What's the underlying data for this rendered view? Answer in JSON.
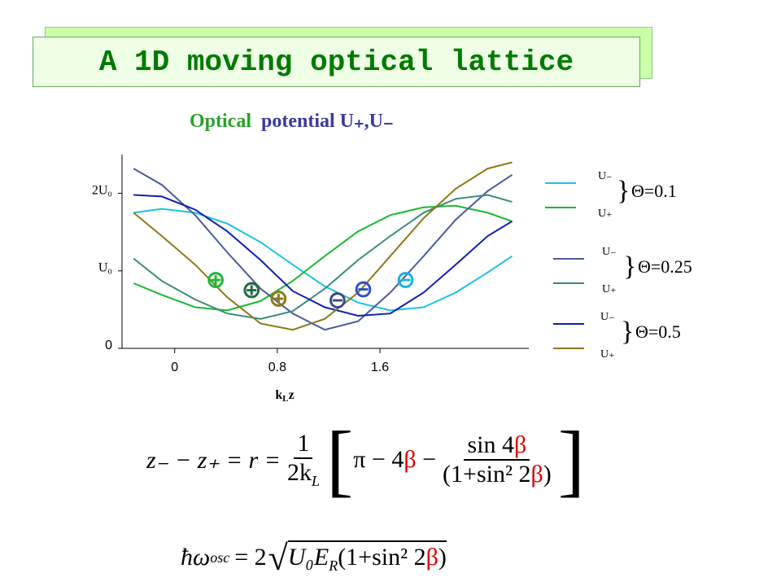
{
  "title": "A 1D moving optical lattice",
  "subtitle_parts": [
    "Optical",
    "potential U₊,U₋"
  ],
  "chart_data": {
    "type": "line",
    "x": [
      -0.32,
      -0.1,
      0.16,
      0.41,
      0.67,
      0.92,
      1.17,
      1.43,
      1.68,
      1.94,
      2.19,
      2.44,
      2.63
    ],
    "xlim": [
      -0.41,
      2.76
    ],
    "xticks": [
      0,
      0.8,
      1.6
    ],
    "ylim": [
      0,
      2.5
    ],
    "yticks": [
      0,
      {
        "value": 1,
        "label": "U₀"
      },
      {
        "value": 2,
        "label": "2U₀"
      }
    ],
    "x_label_parts": [
      "k",
      "L",
      "z"
    ],
    "legend_groups": [
      "Θ=0.1",
      "Θ=0.25",
      "Θ=0.5"
    ],
    "series": [
      {
        "name": "U₋",
        "color": "#19c3e6",
        "values": [
          1.75,
          1.8,
          1.75,
          1.61,
          1.37,
          1.08,
          0.8,
          0.59,
          0.49,
          0.53,
          0.72,
          0.98,
          1.19
        ]
      },
      {
        "name": "U₊",
        "color": "#19b832",
        "values": [
          0.84,
          0.69,
          0.53,
          0.49,
          0.61,
          0.87,
          1.19,
          1.51,
          1.72,
          1.82,
          1.84,
          1.75,
          1.64
        ]
      },
      {
        "name": "U₋",
        "color": "#4a5aa0",
        "values": [
          2.32,
          2.11,
          1.72,
          1.24,
          0.77,
          0.45,
          0.24,
          0.35,
          0.72,
          1.19,
          1.66,
          2.03,
          2.24
        ]
      },
      {
        "name": "U₊",
        "color": "#3a8a78",
        "values": [
          1.16,
          0.87,
          0.63,
          0.45,
          0.38,
          0.48,
          0.77,
          1.14,
          1.45,
          1.75,
          1.93,
          1.98,
          1.89
        ]
      },
      {
        "name": "U₋",
        "color": "#1020b0",
        "values": [
          1.98,
          1.96,
          1.79,
          1.51,
          1.14,
          0.74,
          0.53,
          0.42,
          0.45,
          0.72,
          1.08,
          1.45,
          1.64
        ]
      },
      {
        "name": "U₊",
        "color": "#8a7a18",
        "values": [
          1.75,
          1.45,
          1.08,
          0.66,
          0.32,
          0.24,
          0.38,
          0.72,
          1.19,
          1.68,
          2.06,
          2.32,
          2.4
        ]
      }
    ],
    "annotations": [
      {
        "text": "⊕",
        "x": 0.32,
        "y": 0.87,
        "color": "#19b832"
      },
      {
        "text": "⊕",
        "x": 0.6,
        "y": 0.74,
        "color": "#1f6a40"
      },
      {
        "text": "⊕",
        "x": 0.81,
        "y": 0.63,
        "color": "#8a7a18"
      },
      {
        "text": "⊖",
        "x": 1.27,
        "y": 0.61,
        "color": "#3a4a80"
      },
      {
        "text": "⊖",
        "x": 1.47,
        "y": 0.75,
        "color": "#3050c0"
      },
      {
        "text": "⊖",
        "x": 1.8,
        "y": 0.87,
        "color": "#19b0e0"
      }
    ]
  },
  "equation_1": {
    "lhs": "z₋ − z₊ = r =",
    "frac_num": "1",
    "frac_den": "2k",
    "frac_den_sub": "L",
    "bracket_text": "π − 4β −",
    "inner_num": "sin 4β",
    "inner_den": "(1+sin² 2β)"
  },
  "equation_2": {
    "lhs": "ħω",
    "lhs_sub": "osc",
    "mid": "= 2",
    "root": "U₀E",
    "root_sub": "R",
    "root_rest": "(1+sin² 2β)"
  }
}
